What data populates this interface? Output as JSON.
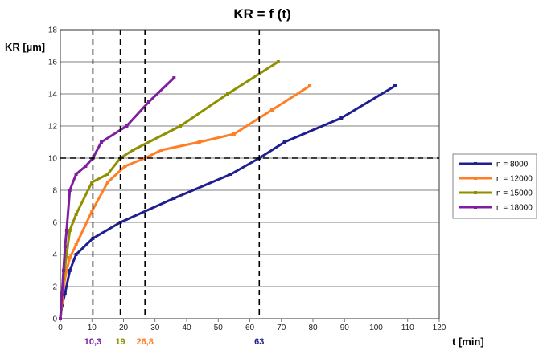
{
  "chart_data": {
    "type": "line",
    "title": "KR = f (t)",
    "xlabel": "t [min]",
    "ylabel": "KR [µm]",
    "xlim": [
      0,
      120
    ],
    "ylim": [
      0,
      18
    ],
    "xticks": [
      "0",
      "10",
      "20",
      "30",
      "40",
      "50",
      "60",
      "70",
      "80",
      "90",
      "100",
      "110",
      "120"
    ],
    "yticks": [
      "0",
      "2",
      "4",
      "6",
      "8",
      "10",
      "12",
      "14",
      "16",
      "18"
    ],
    "grid": "horizontal",
    "legend_position": "right",
    "series": [
      {
        "name": "n = 8000",
        "color": "#1f1f8f",
        "x": [
          0,
          0.5,
          1.5,
          3,
          5,
          10.3,
          19,
          36,
          54,
          63,
          71,
          89,
          106
        ],
        "y": [
          0,
          0.8,
          1.6,
          3,
          4,
          5,
          6,
          7.5,
          9,
          10,
          11,
          12.5,
          14.5
        ]
      },
      {
        "name": "n = 12000",
        "color": "#ff7f27",
        "x": [
          0,
          0.5,
          1,
          2,
          3,
          5,
          10,
          15,
          20.5,
          26.8,
          32,
          44,
          55,
          67,
          79
        ],
        "y": [
          0,
          1,
          2,
          3,
          3.8,
          4.6,
          6.7,
          8.5,
          9.5,
          10,
          10.5,
          11,
          11.5,
          13,
          14.5
        ]
      },
      {
        "name": "n = 15000",
        "color": "#8f8f00",
        "x": [
          0,
          0.5,
          1,
          2,
          3,
          5,
          10,
          15,
          19,
          23,
          38,
          53,
          69
        ],
        "y": [
          0,
          1.5,
          2.5,
          4,
          5.5,
          6.5,
          8.5,
          9,
          10,
          10.5,
          12,
          14,
          16
        ]
      },
      {
        "name": "n = 18000",
        "color": "#7f1f9f",
        "x": [
          0,
          0.5,
          1,
          1.5,
          2,
          3,
          5,
          8,
          10.3,
          13,
          21,
          28,
          36
        ],
        "y": [
          0,
          1.5,
          3,
          4.5,
          5.5,
          8,
          9,
          9.5,
          10,
          11,
          12,
          13.5,
          15
        ]
      }
    ],
    "reference_lines": {
      "vertical": [
        10.3,
        19,
        26.8,
        63
      ],
      "horizontal": [
        10
      ]
    },
    "annotations": [
      {
        "text": "10,3",
        "x": 10.3,
        "color": "#7f1f9f"
      },
      {
        "text": "19",
        "x": 19,
        "color": "#8f8f00"
      },
      {
        "text": "26,8",
        "x": 26.8,
        "color": "#ff7f27"
      },
      {
        "text": "63",
        "x": 63,
        "color": "#1f1f8f"
      }
    ]
  }
}
